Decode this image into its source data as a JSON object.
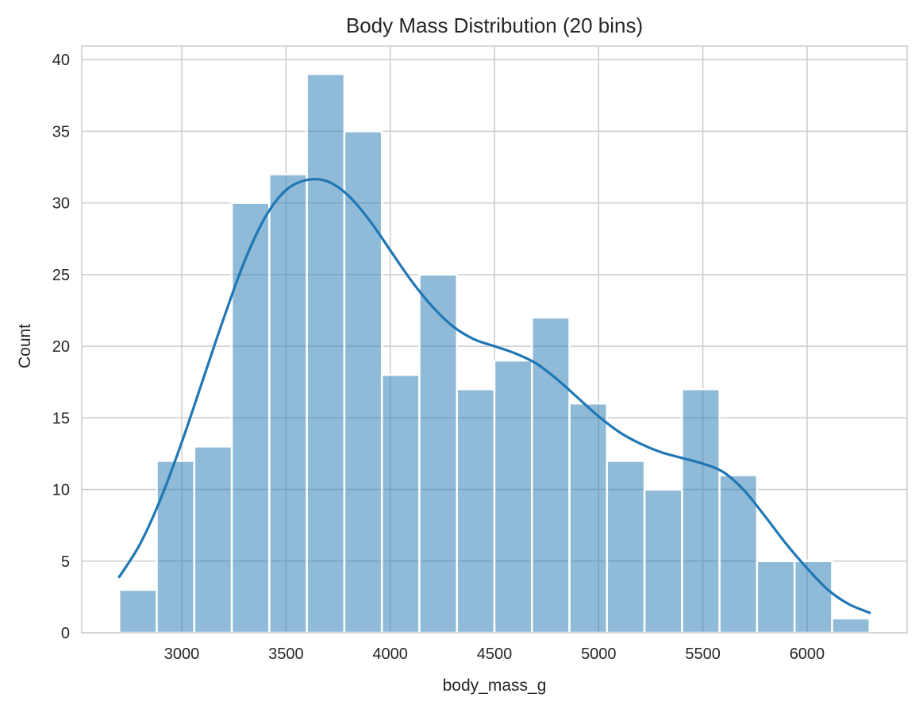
{
  "chart_data": {
    "type": "bar",
    "title": "Body Mass Distribution (20 bins)",
    "xlabel": "body_mass_g",
    "ylabel": "Count",
    "bin_start": 2700,
    "bin_width": 180,
    "counts": [
      3,
      12,
      13,
      30,
      32,
      39,
      35,
      18,
      25,
      17,
      19,
      22,
      16,
      12,
      10,
      17,
      11,
      5,
      5,
      1
    ],
    "xlim": [
      2520,
      6480
    ],
    "ylim": [
      0,
      40.95
    ],
    "x_ticks": [
      3000,
      3500,
      4000,
      4500,
      5000,
      5500,
      6000
    ],
    "y_ticks": [
      0,
      5,
      10,
      15,
      20,
      25,
      30,
      35,
      40
    ],
    "kde": {
      "x": [
        2700,
        2800,
        2900,
        3000,
        3100,
        3200,
        3300,
        3400,
        3500,
        3600,
        3700,
        3800,
        3900,
        4000,
        4100,
        4200,
        4300,
        4400,
        4500,
        4600,
        4700,
        4800,
        4900,
        5000,
        5100,
        5200,
        5300,
        5400,
        5500,
        5600,
        5700,
        5800,
        5900,
        6000,
        6100,
        6200,
        6300
      ],
      "y": [
        3.9,
        6.2,
        9.4,
        13.3,
        17.6,
        21.9,
        25.9,
        29.0,
        30.9,
        31.6,
        31.5,
        30.5,
        28.8,
        26.7,
        24.6,
        22.8,
        21.4,
        20.5,
        20.0,
        19.5,
        18.8,
        17.7,
        16.4,
        15.1,
        14.0,
        13.2,
        12.6,
        12.2,
        11.8,
        11.2,
        9.9,
        8.1,
        6.2,
        4.5,
        3.0,
        2.0,
        1.4
      ]
    },
    "colors": {
      "bar_fill": "#1f77b4",
      "bar_opacity": 0.5,
      "kde_line": "#1f77b4",
      "grid": "#cccccc",
      "axes_frame": "#cccccc"
    },
    "grid": true
  }
}
